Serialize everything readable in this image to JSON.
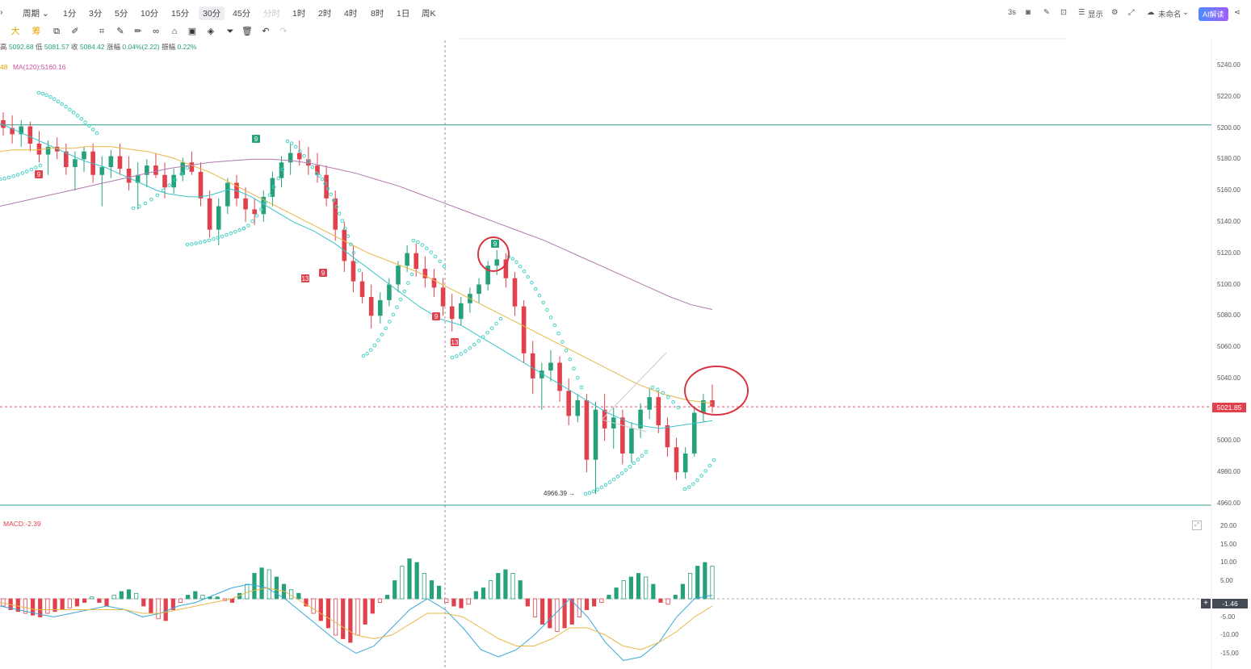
{
  "topbar": {
    "periods": [
      {
        "label": "周期",
        "name": "period-dropdown"
      },
      {
        "label": "1分",
        "name": "period-1m"
      },
      {
        "label": "3分",
        "name": "period-3m"
      },
      {
        "label": "5分",
        "name": "period-5m"
      },
      {
        "label": "10分",
        "name": "period-10m"
      },
      {
        "label": "15分",
        "name": "period-15m"
      },
      {
        "label": "30分",
        "name": "period-30m",
        "active": true
      },
      {
        "label": "45分",
        "name": "period-45m"
      },
      {
        "label": "分时",
        "name": "period-intraday",
        "disabled": true
      },
      {
        "label": "1时",
        "name": "period-1h"
      },
      {
        "label": "2时",
        "name": "period-2h"
      },
      {
        "label": "4时",
        "name": "period-4h"
      },
      {
        "label": "8时",
        "name": "period-8h"
      },
      {
        "label": "1日",
        "name": "period-1d"
      },
      {
        "label": "周K",
        "name": "period-1w"
      }
    ],
    "right": {
      "refresh": "3s",
      "display": "显示",
      "unnamed": "未命名",
      "ai": "AI解读"
    }
  },
  "toolbar": {
    "da": "大",
    "chou": "筹"
  },
  "ohlc": {
    "high_label": "高",
    "high": "5092.68",
    "low_label": "低",
    "low": "5081.57",
    "close_label": "收",
    "close": "5084.42",
    "change_label": "涨幅",
    "change": "0.04%(2.22)",
    "amp_label": "振幅",
    "amp": "0.22%"
  },
  "ma": {
    "prefix": "48",
    "ma120": "MA(120):5160.16"
  },
  "chart_data": [
    {
      "type": "candlestick",
      "title": "",
      "ylim": [
        4955,
        5250
      ],
      "y_ticks": [
        "5240.00",
        "5220.00",
        "5200.00",
        "5180.00",
        "5160.00",
        "5140.00",
        "5120.00",
        "5100.00",
        "5080.00",
        "5060.00",
        "5040.00",
        "5021.85",
        "5000.00",
        "4980.00",
        "4960.00"
      ],
      "current_price": "5021.85",
      "horizontal_line": 5202,
      "low_marker": "4966.39",
      "annotations": [
        "9",
        "9",
        "13",
        "9",
        "13",
        "9"
      ],
      "candles": [
        [
          5205,
          5210,
          5195,
          5200
        ],
        [
          5200,
          5208,
          5190,
          5196
        ],
        [
          5196,
          5205,
          5188,
          5201
        ],
        [
          5201,
          5204,
          5185,
          5190
        ],
        [
          5190,
          5198,
          5178,
          5183
        ],
        [
          5183,
          5192,
          5170,
          5188
        ],
        [
          5188,
          5194,
          5180,
          5185
        ],
        [
          5185,
          5190,
          5170,
          5175
        ],
        [
          5175,
          5185,
          5160,
          5180
        ],
        [
          5180,
          5188,
          5172,
          5185
        ],
        [
          5185,
          5190,
          5165,
          5170
        ],
        [
          5170,
          5182,
          5150,
          5175
        ],
        [
          5175,
          5186,
          5168,
          5182
        ],
        [
          5182,
          5190,
          5170,
          5174
        ],
        [
          5174,
          5182,
          5160,
          5165
        ],
        [
          5165,
          5178,
          5148,
          5170
        ],
        [
          5170,
          5180,
          5162,
          5176
        ],
        [
          5176,
          5184,
          5168,
          5170
        ],
        [
          5170,
          5178,
          5155,
          5162
        ],
        [
          5162,
          5174,
          5158,
          5170
        ],
        [
          5170,
          5181,
          5166,
          5178
        ],
        [
          5178,
          5185,
          5170,
          5172
        ],
        [
          5172,
          5178,
          5150,
          5155
        ],
        [
          5155,
          5160,
          5130,
          5135
        ],
        [
          5135,
          5155,
          5125,
          5150
        ],
        [
          5150,
          5168,
          5145,
          5165
        ],
        [
          5165,
          5170,
          5150,
          5155
        ],
        [
          5155,
          5162,
          5140,
          5148
        ],
        [
          5148,
          5155,
          5138,
          5145
        ],
        [
          5145,
          5160,
          5140,
          5156
        ],
        [
          5156,
          5172,
          5150,
          5168
        ],
        [
          5168,
          5182,
          5162,
          5178
        ],
        [
          5178,
          5190,
          5170,
          5184
        ],
        [
          5184,
          5192,
          5176,
          5180
        ],
        [
          5180,
          5188,
          5170,
          5176
        ],
        [
          5176,
          5184,
          5165,
          5170
        ],
        [
          5170,
          5176,
          5150,
          5155
        ],
        [
          5155,
          5160,
          5128,
          5135
        ],
        [
          5135,
          5140,
          5108,
          5115
        ],
        [
          5115,
          5125,
          5095,
          5102
        ],
        [
          5102,
          5108,
          5088,
          5092
        ],
        [
          5092,
          5100,
          5072,
          5080
        ],
        [
          5080,
          5095,
          5075,
          5090
        ],
        [
          5090,
          5104,
          5086,
          5100
        ],
        [
          5100,
          5115,
          5095,
          5112
        ],
        [
          5112,
          5125,
          5108,
          5120
        ],
        [
          5120,
          5126,
          5105,
          5110
        ],
        [
          5110,
          5118,
          5098,
          5104
        ],
        [
          5104,
          5110,
          5092,
          5098
        ],
        [
          5098,
          5104,
          5080,
          5086
        ],
        [
          5086,
          5094,
          5070,
          5078
        ],
        [
          5078,
          5092,
          5074,
          5088
        ],
        [
          5088,
          5098,
          5082,
          5094
        ],
        [
          5094,
          5104,
          5088,
          5100
        ],
        [
          5100,
          5115,
          5096,
          5112
        ],
        [
          5112,
          5122,
          5106,
          5116
        ],
        [
          5116,
          5120,
          5098,
          5104
        ],
        [
          5104,
          5108,
          5080,
          5086
        ],
        [
          5086,
          5090,
          5050,
          5056
        ],
        [
          5056,
          5064,
          5030,
          5040
        ],
        [
          5040,
          5050,
          5020,
          5045
        ],
        [
          5045,
          5058,
          5038,
          5050
        ],
        [
          5050,
          5054,
          5025,
          5032
        ],
        [
          5032,
          5040,
          5010,
          5016
        ],
        [
          5016,
          5030,
          5012,
          5026
        ],
        [
          5026,
          5030,
          4980,
          4988
        ],
        [
          4988,
          5025,
          4966,
          5020
        ],
        [
          5020,
          5030,
          5000,
          5008
        ],
        [
          5008,
          5022,
          4995,
          5015
        ],
        [
          5015,
          5020,
          4985,
          4992
        ],
        [
          4992,
          5012,
          4986,
          5008
        ],
        [
          5008,
          5024,
          5002,
          5020
        ],
        [
          5020,
          5034,
          5014,
          5028
        ],
        [
          5028,
          5032,
          5005,
          5010
        ],
        [
          5010,
          5015,
          4990,
          4996
        ],
        [
          4996,
          5002,
          4975,
          4980
        ],
        [
          4980,
          4996,
          4976,
          4992
        ],
        [
          4992,
          5022,
          4990,
          5018
        ],
        [
          5018,
          5030,
          5012,
          5026
        ],
        [
          5026,
          5036,
          5018,
          5022
        ]
      ],
      "ma_fast": [
        5203,
        5200,
        5197,
        5194,
        5191,
        5188,
        5185,
        5182,
        5179,
        5177,
        5175,
        5172,
        5169,
        5166,
        5163,
        5160,
        5158,
        5157,
        5156,
        5156,
        5157,
        5159,
        5161,
        5159,
        5156,
        5152,
        5148,
        5144,
        5140,
        5137,
        5134,
        5130,
        5126,
        5121,
        5116,
        5111,
        5106,
        5101,
        5096,
        5091,
        5086,
        5082,
        5078,
        5076,
        5074,
        5070,
        5066,
        5062,
        5058,
        5054,
        5050,
        5046,
        5042,
        5038,
        5034,
        5030,
        5026,
        5022,
        5018,
        5015,
        5012,
        5010,
        5009,
        5008,
        5009,
        5010,
        5011,
        5012,
        5013
      ],
      "ma_slow": [
        5185,
        5186,
        5186,
        5186,
        5187,
        5187,
        5187,
        5188,
        5188,
        5188,
        5187,
        5186,
        5185,
        5183,
        5181,
        5178,
        5175,
        5172,
        5168,
        5164,
        5160,
        5156,
        5152,
        5148,
        5144,
        5140,
        5136,
        5132,
        5128,
        5124,
        5120,
        5117,
        5114,
        5111,
        5108,
        5104,
        5100,
        5096,
        5092,
        5088,
        5084,
        5080,
        5076,
        5072,
        5068,
        5064,
        5060,
        5056,
        5052,
        5048,
        5044,
        5040,
        5036,
        5033,
        5030,
        5028,
        5026,
        5025,
        5024
      ],
      "ma120": [
        5150,
        5153,
        5156,
        5159,
        5162,
        5165,
        5168,
        5171,
        5174,
        5176,
        5178,
        5179,
        5180,
        5180,
        5179,
        5177,
        5174,
        5171,
        5167,
        5163,
        5158,
        5153,
        5148,
        5143,
        5138,
        5133,
        5128,
        5122,
        5116,
        5110,
        5104,
        5098,
        5092,
        5087,
        5084
      ]
    },
    {
      "type": "bar",
      "title": "MACD:-2.39",
      "ylim": [
        -17.5,
        22
      ],
      "y_ticks": [
        "20.00",
        "15.00",
        "10.00",
        "5.00",
        "-1.46",
        "-5.00",
        "-10.00",
        "-15.00"
      ],
      "current_value": "-1.46",
      "values": [
        -2,
        -3,
        -3.5,
        -4,
        -4.5,
        -5,
        -4,
        -3.5,
        -3,
        -2.5,
        -2,
        -1,
        0.5,
        -1,
        -2,
        1,
        2,
        2.5,
        1.5,
        -2,
        -4,
        -5.5,
        -6,
        -3,
        -1,
        1,
        2,
        1,
        0.5,
        0.5,
        -0.5,
        -1,
        1.5,
        4,
        7,
        8.5,
        8,
        6,
        4,
        2.5,
        1.5,
        -2,
        -4,
        -6,
        -8,
        -10,
        -11,
        -12,
        -10,
        -7,
        -4,
        -1,
        1,
        5,
        9,
        11,
        10,
        7,
        5,
        3.5,
        -1,
        -2,
        -2.5,
        -1.5,
        2,
        3,
        5,
        7,
        8,
        7,
        5,
        -2,
        -5,
        -7,
        -8,
        -9,
        -8,
        -7,
        -5,
        -3,
        -2,
        -1,
        1,
        3,
        5,
        6,
        7,
        6,
        4,
        -1,
        -1.5,
        1,
        4,
        7,
        9,
        10,
        9
      ]
    }
  ]
}
